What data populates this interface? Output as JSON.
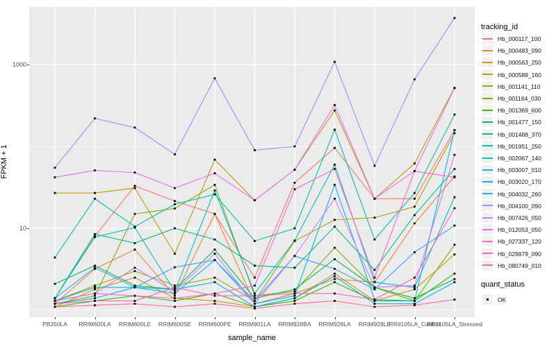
{
  "figure": {
    "background": "#FFFFFF",
    "panel_background": "#EBEBEB",
    "gridline_color": "#FFFFFF",
    "point_color": "#000000",
    "tick_label_color": "#4D4D4D"
  },
  "x_axis": {
    "title": "sample_name"
  },
  "y_axis": {
    "title": "FPKM + 1",
    "tick_labels": [
      "1000",
      "10"
    ]
  },
  "legend": {
    "tracking_title": "tracking_id",
    "quant_title": "quant_status",
    "quant_ok_label": "OK"
  },
  "chart_data": {
    "type": "line",
    "y_scale": "log10",
    "ylabel": "FPKM + 1",
    "xlabel": "sample_name",
    "y_major_breaks": [
      10,
      1000
    ],
    "y_minor_breaks": [
      1,
      100
    ],
    "ylim_log": [
      0.92,
      3.79
    ],
    "grid": "on",
    "legend_position": "right",
    "point_shape": "small black square (quant_status OK)",
    "categories": [
      "PB350LA",
      "RRIM600LA",
      "RRIM600LE",
      "RRIM600SE",
      "RRIM600PE",
      "RRIM901LA",
      "RRIM928BA",
      "RRIM928LA",
      "RRIM928LE",
      "RRII105LA_Control",
      "RRII105LA_Stressed"
    ],
    "series": [
      {
        "name": "Hb_000117_100",
        "color": "#F8766D",
        "values": [
          1.4,
          8,
          33,
          21.5,
          15,
          2.5,
          36,
          96,
          23,
          23,
          158
        ]
      },
      {
        "name": "Hb_000483_090",
        "color": "#EA8331",
        "values": [
          1.2,
          3.2,
          5.5,
          1.5,
          15,
          1.2,
          1.6,
          2.4,
          2.2,
          11.5,
          43
        ]
      },
      {
        "name": "Hb_000563_250",
        "color": "#D89000",
        "values": [
          1.1,
          1.8,
          2.5,
          1.4,
          1.3,
          1.1,
          1.4,
          2.8,
          1.3,
          1.8,
          4.8
        ]
      },
      {
        "name": "Hb_000589_160",
        "color": "#C09B00",
        "values": [
          27,
          27,
          31,
          4.9,
          69,
          22,
          52,
          275,
          23,
          62,
          520
        ]
      },
      {
        "name": "Hb_001141_110",
        "color": "#A3A500",
        "values": [
          1.3,
          2.0,
          3.0,
          2.0,
          2.5,
          1.3,
          7.0,
          12.7,
          13.5,
          18.4,
          145
        ]
      },
      {
        "name": "Hb_001164_030",
        "color": "#7CAE00",
        "values": [
          1.2,
          1.5,
          15,
          17.5,
          34,
          1.5,
          1.7,
          5.8,
          1.9,
          1.3,
          6.3
        ]
      },
      {
        "name": "Hb_001369_600",
        "color": "#39B600",
        "values": [
          1.1,
          1.3,
          1.5,
          1.3,
          1.6,
          1.1,
          1.3,
          2.2,
          1.3,
          1.3,
          2.8
        ]
      },
      {
        "name": "Hb_001477_150",
        "color": "#00BB4E",
        "values": [
          2.1,
          3.5,
          2.0,
          1.8,
          5.5,
          1.4,
          1.8,
          4.2,
          1.9,
          1.4,
          2.4
        ]
      },
      {
        "name": "Hb_001488_370",
        "color": "#00BF7D",
        "values": [
          1.4,
          8.5,
          6.6,
          10,
          7.3,
          3.5,
          3.3,
          10.5,
          3.1,
          14.5,
          53
        ]
      },
      {
        "name": "Hb_001951_250",
        "color": "#00C1A3",
        "values": [
          4.4,
          23,
          10.5,
          19.7,
          26,
          7.0,
          10,
          160,
          7.3,
          27,
          245
        ]
      },
      {
        "name": "Hb_002067_140",
        "color": "#00BFC4",
        "values": [
          1.4,
          7.8,
          10.2,
          1.7,
          29,
          1.6,
          7.1,
          60,
          2.2,
          1.9,
          24
        ]
      },
      {
        "name": "Hb_003007_010",
        "color": "#00BAE0",
        "values": [
          1.3,
          1.9,
          1.9,
          1.6,
          4.1,
          1.2,
          1.5,
          34,
          1.35,
          1.3,
          158
        ]
      },
      {
        "name": "Hb_003020_170",
        "color": "#00B0F6",
        "values": [
          1.2,
          1.4,
          1.9,
          1.8,
          2.2,
          1.1,
          1.4,
          2.6,
          1.2,
          1.2,
          2.2
        ]
      },
      {
        "name": "Hb_004032_260",
        "color": "#35A2FF",
        "values": [
          1.4,
          3.3,
          1.9,
          3.35,
          4.1,
          1.3,
          4.6,
          3.2,
          1.8,
          5.1,
          10.8
        ]
      },
      {
        "name": "Hb_004100_090",
        "color": "#9590FF",
        "values": [
          55,
          220,
          170,
          80,
          680,
          90,
          100,
          1080,
          58,
          660,
          3700
        ]
      },
      {
        "name": "Hb_007426_050",
        "color": "#C77CFF",
        "values": [
          1.3,
          1.6,
          3.3,
          1.7,
          4.9,
          1.2,
          4.6,
          23,
          1.9,
          2.0,
          79
        ]
      },
      {
        "name": "Hb_012053_050",
        "color": "#E76BF3",
        "values": [
          42,
          51,
          48,
          31,
          47,
          22,
          52,
          320,
          23,
          50,
          515
        ]
      },
      {
        "name": "Hb_027337_120",
        "color": "#FA62DB",
        "values": [
          1.3,
          1.6,
          1.5,
          1.4,
          1.6,
          2.0,
          30,
          53,
          2.5,
          50,
          42
        ]
      },
      {
        "name": "Hb_029879_090",
        "color": "#FF62BC",
        "values": [
          1.2,
          1.3,
          1.3,
          1.9,
          1.5,
          1.5,
          1.6,
          1.6,
          1.35,
          2.5,
          17.6
        ]
      },
      {
        "name": "Hb_080749_010",
        "color": "#FF6A98",
        "values": [
          1.1,
          1.15,
          1.2,
          1.1,
          1.2,
          1.05,
          1.2,
          1.3,
          1.1,
          1.15,
          1.35
        ]
      }
    ]
  }
}
